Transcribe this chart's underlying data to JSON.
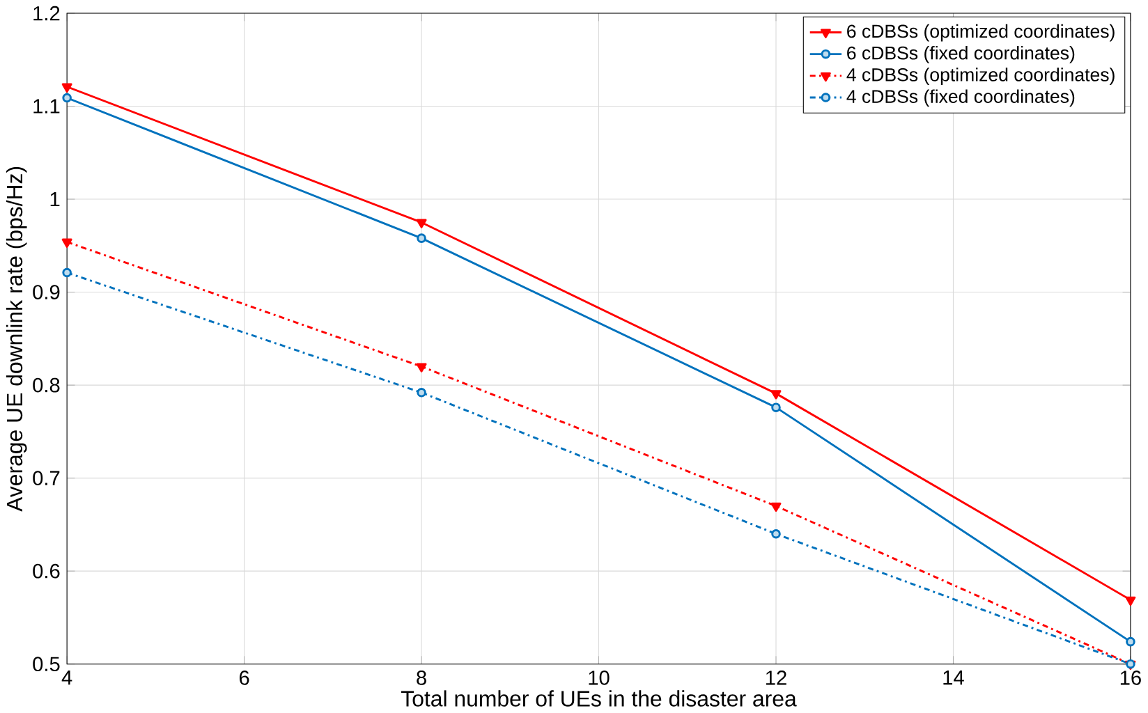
{
  "chart_data": {
    "type": "line",
    "xlabel": "Total number of UEs in the disaster area",
    "ylabel": "Average UE downlink rate (bps/Hz)",
    "x": [
      4,
      8,
      12,
      16
    ],
    "series": [
      {
        "name": "6 cDBSs (optimized coordinates)",
        "color": "#ff0000",
        "marker": "triangle",
        "line_style": "solid",
        "values": [
          1.121,
          0.975,
          0.791,
          0.569
        ]
      },
      {
        "name": "6 cDBSs (fixed coordinates)",
        "color": "#0072bd",
        "marker": "circle",
        "line_style": "solid",
        "values": [
          1.109,
          0.958,
          0.776,
          0.524
        ]
      },
      {
        "name": "4 cDBSs (optimized coordinates)",
        "color": "#ff0000",
        "marker": "triangle",
        "line_style": "dashdot",
        "values": [
          0.954,
          0.82,
          0.67,
          0.5
        ]
      },
      {
        "name": "4 cDBSs (fixed coordinates)",
        "color": "#0072bd",
        "marker": "circle",
        "line_style": "dashdot",
        "values": [
          0.921,
          0.792,
          0.64,
          0.5
        ]
      }
    ],
    "xlim": [
      4,
      16
    ],
    "ylim": [
      0.5,
      1.2
    ],
    "xticks": [
      4,
      6,
      8,
      10,
      12,
      14,
      16
    ],
    "yticks": [
      0.5,
      0.6,
      0.7,
      0.8,
      0.9,
      1,
      1.1,
      1.2
    ],
    "grid": true,
    "legend": "top right"
  }
}
